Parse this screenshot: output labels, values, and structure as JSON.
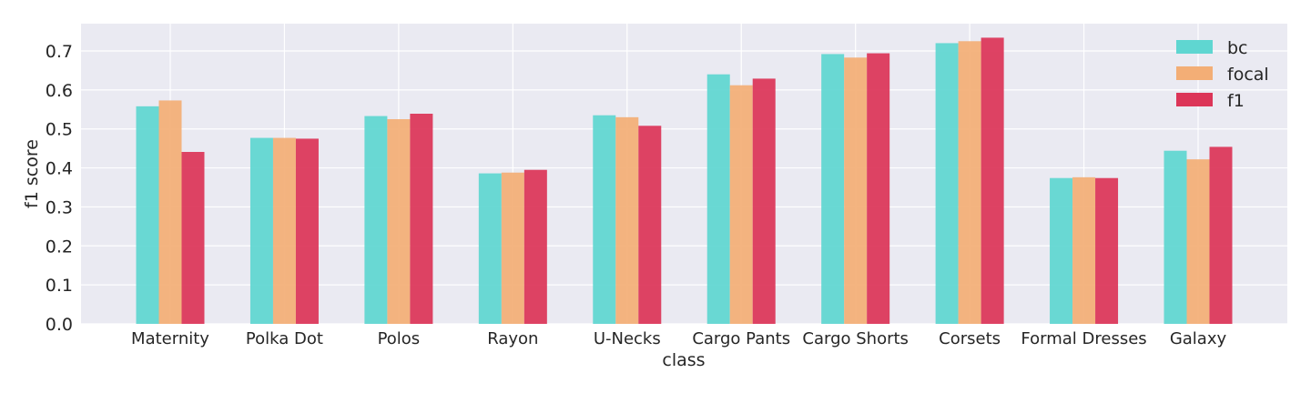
{
  "chart_data": {
    "type": "bar",
    "title": "",
    "xlabel": "class",
    "ylabel": "f1 score",
    "ylim": [
      0,
      0.77
    ],
    "yticks": [
      "0.0",
      "0.1",
      "0.2",
      "0.3",
      "0.4",
      "0.5",
      "0.6",
      "0.7"
    ],
    "grid": true,
    "legend_position": "top-right",
    "categories": [
      "Maternity",
      "Polka Dot",
      "Polos",
      "Rayon",
      "U-Necks",
      "Cargo Pants",
      "Cargo Shorts",
      "Corsets",
      "Formal Dresses",
      "Galaxy"
    ],
    "series": [
      {
        "name": "bc",
        "color": "#5fd6d1",
        "values": [
          0.558,
          0.477,
          0.533,
          0.386,
          0.535,
          0.64,
          0.692,
          0.72,
          0.374,
          0.444
        ]
      },
      {
        "name": "focal",
        "color": "#f3ae76",
        "values": [
          0.573,
          0.477,
          0.525,
          0.388,
          0.53,
          0.612,
          0.683,
          0.725,
          0.376,
          0.422
        ]
      },
      {
        "name": "f1",
        "color": "#dc3558",
        "values": [
          0.441,
          0.475,
          0.539,
          0.395,
          0.508,
          0.629,
          0.694,
          0.734,
          0.374,
          0.454
        ]
      }
    ]
  }
}
